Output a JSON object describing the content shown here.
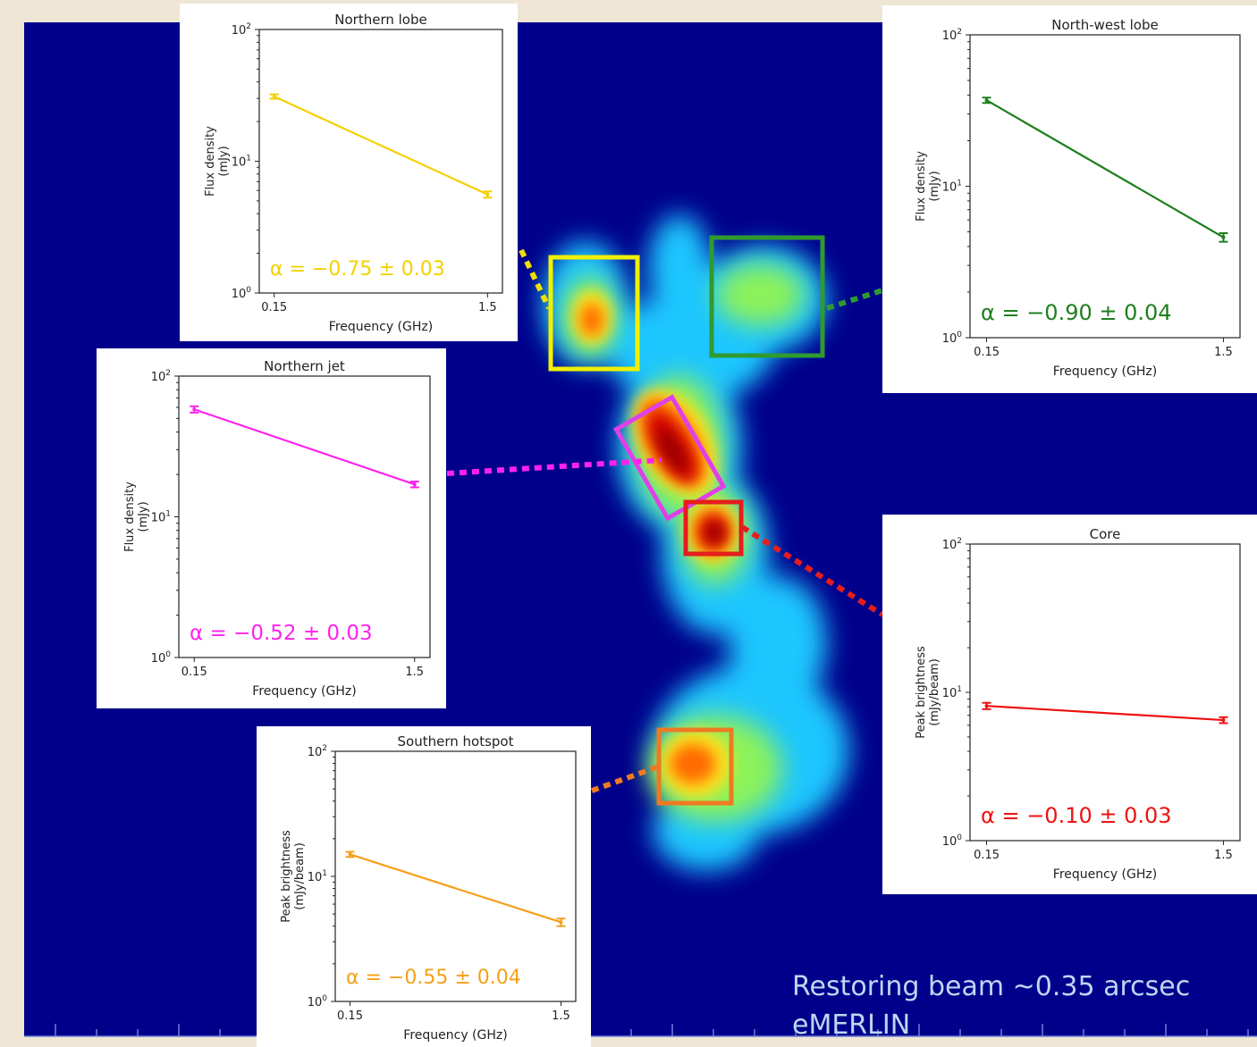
{
  "colors": {
    "background": "#efe6d5",
    "map_background": "#00008b",
    "caption_text": "#bcd7f2"
  },
  "caption": {
    "line1": "Restoring beam ~0.35 arcsec",
    "line2": "eMERLIN"
  },
  "chart_data": [
    {
      "type": "line",
      "title": "Northern lobe",
      "xlabel": "Frequency (GHz)",
      "ylabel": [
        "Flux density",
        "(mJy)"
      ],
      "x": [
        0.15,
        1.5
      ],
      "xticks": [
        "0.15",
        "1.5"
      ],
      "yscale": "log",
      "ylim": [
        1,
        100
      ],
      "yticks": [
        "10^0",
        "10^1",
        "10^2"
      ],
      "series": [
        {
          "values": [
            31,
            5.6
          ],
          "errors": [
            1.2,
            0.3
          ],
          "color": "#f5d000"
        }
      ],
      "annotation": "α = −0.75 ± 0.03",
      "grid": false
    },
    {
      "type": "line",
      "title": "North-west lobe",
      "xlabel": "Frequency (GHz)",
      "ylabel": [
        "Flux density",
        "(mJy)"
      ],
      "x": [
        0.15,
        1.5
      ],
      "xticks": [
        "0.15",
        "1.5"
      ],
      "yscale": "log",
      "ylim": [
        1,
        100
      ],
      "yticks": [
        "10^0",
        "10^1",
        "10^2"
      ],
      "series": [
        {
          "values": [
            37,
            4.6
          ],
          "errors": [
            1.5,
            0.3
          ],
          "color": "#1e7f1e"
        }
      ],
      "annotation": "α = −0.90 ± 0.04",
      "grid": false
    },
    {
      "type": "line",
      "title": "Northern jet",
      "xlabel": "Frequency (GHz)",
      "ylabel": [
        "Flux density",
        "(mJy)"
      ],
      "x": [
        0.15,
        1.5
      ],
      "xticks": [
        "0.15",
        "1.5"
      ],
      "yscale": "log",
      "ylim": [
        1,
        100
      ],
      "yticks": [
        "10^0",
        "10^1",
        "10^2"
      ],
      "series": [
        {
          "values": [
            58,
            17
          ],
          "errors": [
            3,
            0.8
          ],
          "color": "#ff22ee"
        }
      ],
      "annotation": "α = −0.52 ± 0.03",
      "grid": false
    },
    {
      "type": "line",
      "title": "Core",
      "xlabel": "Frequency (GHz)",
      "ylabel": [
        "Peak brightness",
        "(mJy/beam)"
      ],
      "x": [
        0.15,
        1.5
      ],
      "xticks": [
        "0.15",
        "1.5"
      ],
      "yscale": "log",
      "ylim": [
        1,
        100
      ],
      "yticks": [
        "10^0",
        "10^1",
        "10^2"
      ],
      "series": [
        {
          "values": [
            8.1,
            6.5
          ],
          "errors": [
            0.4,
            0.3
          ],
          "color": "#ee1111"
        }
      ],
      "annotation": "α = −0.10 ± 0.03",
      "grid": false
    },
    {
      "type": "line",
      "title": "Southern hotspot",
      "xlabel": "Frequency (GHz)",
      "ylabel": [
        "Peak brightness",
        "(mJy/beam)"
      ],
      "x": [
        0.15,
        1.5
      ],
      "xticks": [
        "0.15",
        "1.5"
      ],
      "yscale": "log",
      "ylim": [
        1,
        100
      ],
      "yticks": [
        "10^0",
        "10^1",
        "10^2"
      ],
      "series": [
        {
          "values": [
            15,
            4.3
          ],
          "errors": [
            0.7,
            0.3
          ],
          "color": "#f5a01a"
        }
      ],
      "annotation": "α = −0.55 ± 0.04",
      "grid": false
    }
  ]
}
